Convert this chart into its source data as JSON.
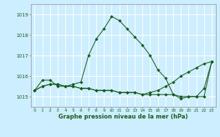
{
  "title": "",
  "xlabel": "Graphe pression niveau de la mer (hPa)",
  "bg_color": "#cceeff",
  "grid_color": "#ffffff",
  "line_color": "#1a5c1a",
  "marker_color": "#1a5c1a",
  "ylim": [
    1014.5,
    1019.5
  ],
  "xlim": [
    -0.5,
    23.5
  ],
  "yticks": [
    1015,
    1016,
    1017,
    1018,
    1019
  ],
  "xticks": [
    0,
    1,
    2,
    3,
    4,
    5,
    6,
    7,
    8,
    9,
    10,
    11,
    12,
    13,
    14,
    15,
    16,
    17,
    18,
    19,
    20,
    21,
    22,
    23
  ],
  "series1": [
    1015.3,
    1015.8,
    1015.8,
    1015.5,
    1015.5,
    1015.6,
    1015.7,
    1017.0,
    1017.8,
    1018.3,
    1018.9,
    1018.7,
    1018.3,
    1017.9,
    1017.5,
    1017.0,
    1016.3,
    1015.9,
    1015.1,
    1014.9,
    1015.0,
    1015.0,
    1015.4,
    1016.7
  ],
  "series2": [
    1015.3,
    1015.5,
    1015.6,
    1015.6,
    1015.5,
    1015.5,
    1015.4,
    1015.4,
    1015.3,
    1015.3,
    1015.3,
    1015.2,
    1015.2,
    1015.2,
    1015.1,
    1015.1,
    1015.1,
    1015.1,
    1015.1,
    1015.0,
    1015.0,
    1015.0,
    1015.0,
    1016.7
  ],
  "series3": [
    1015.3,
    1015.5,
    1015.6,
    1015.6,
    1015.5,
    1015.5,
    1015.4,
    1015.4,
    1015.3,
    1015.3,
    1015.3,
    1015.2,
    1015.2,
    1015.2,
    1015.1,
    1015.2,
    1015.3,
    1015.5,
    1015.7,
    1016.0,
    1016.2,
    1016.4,
    1016.6,
    1016.7
  ]
}
